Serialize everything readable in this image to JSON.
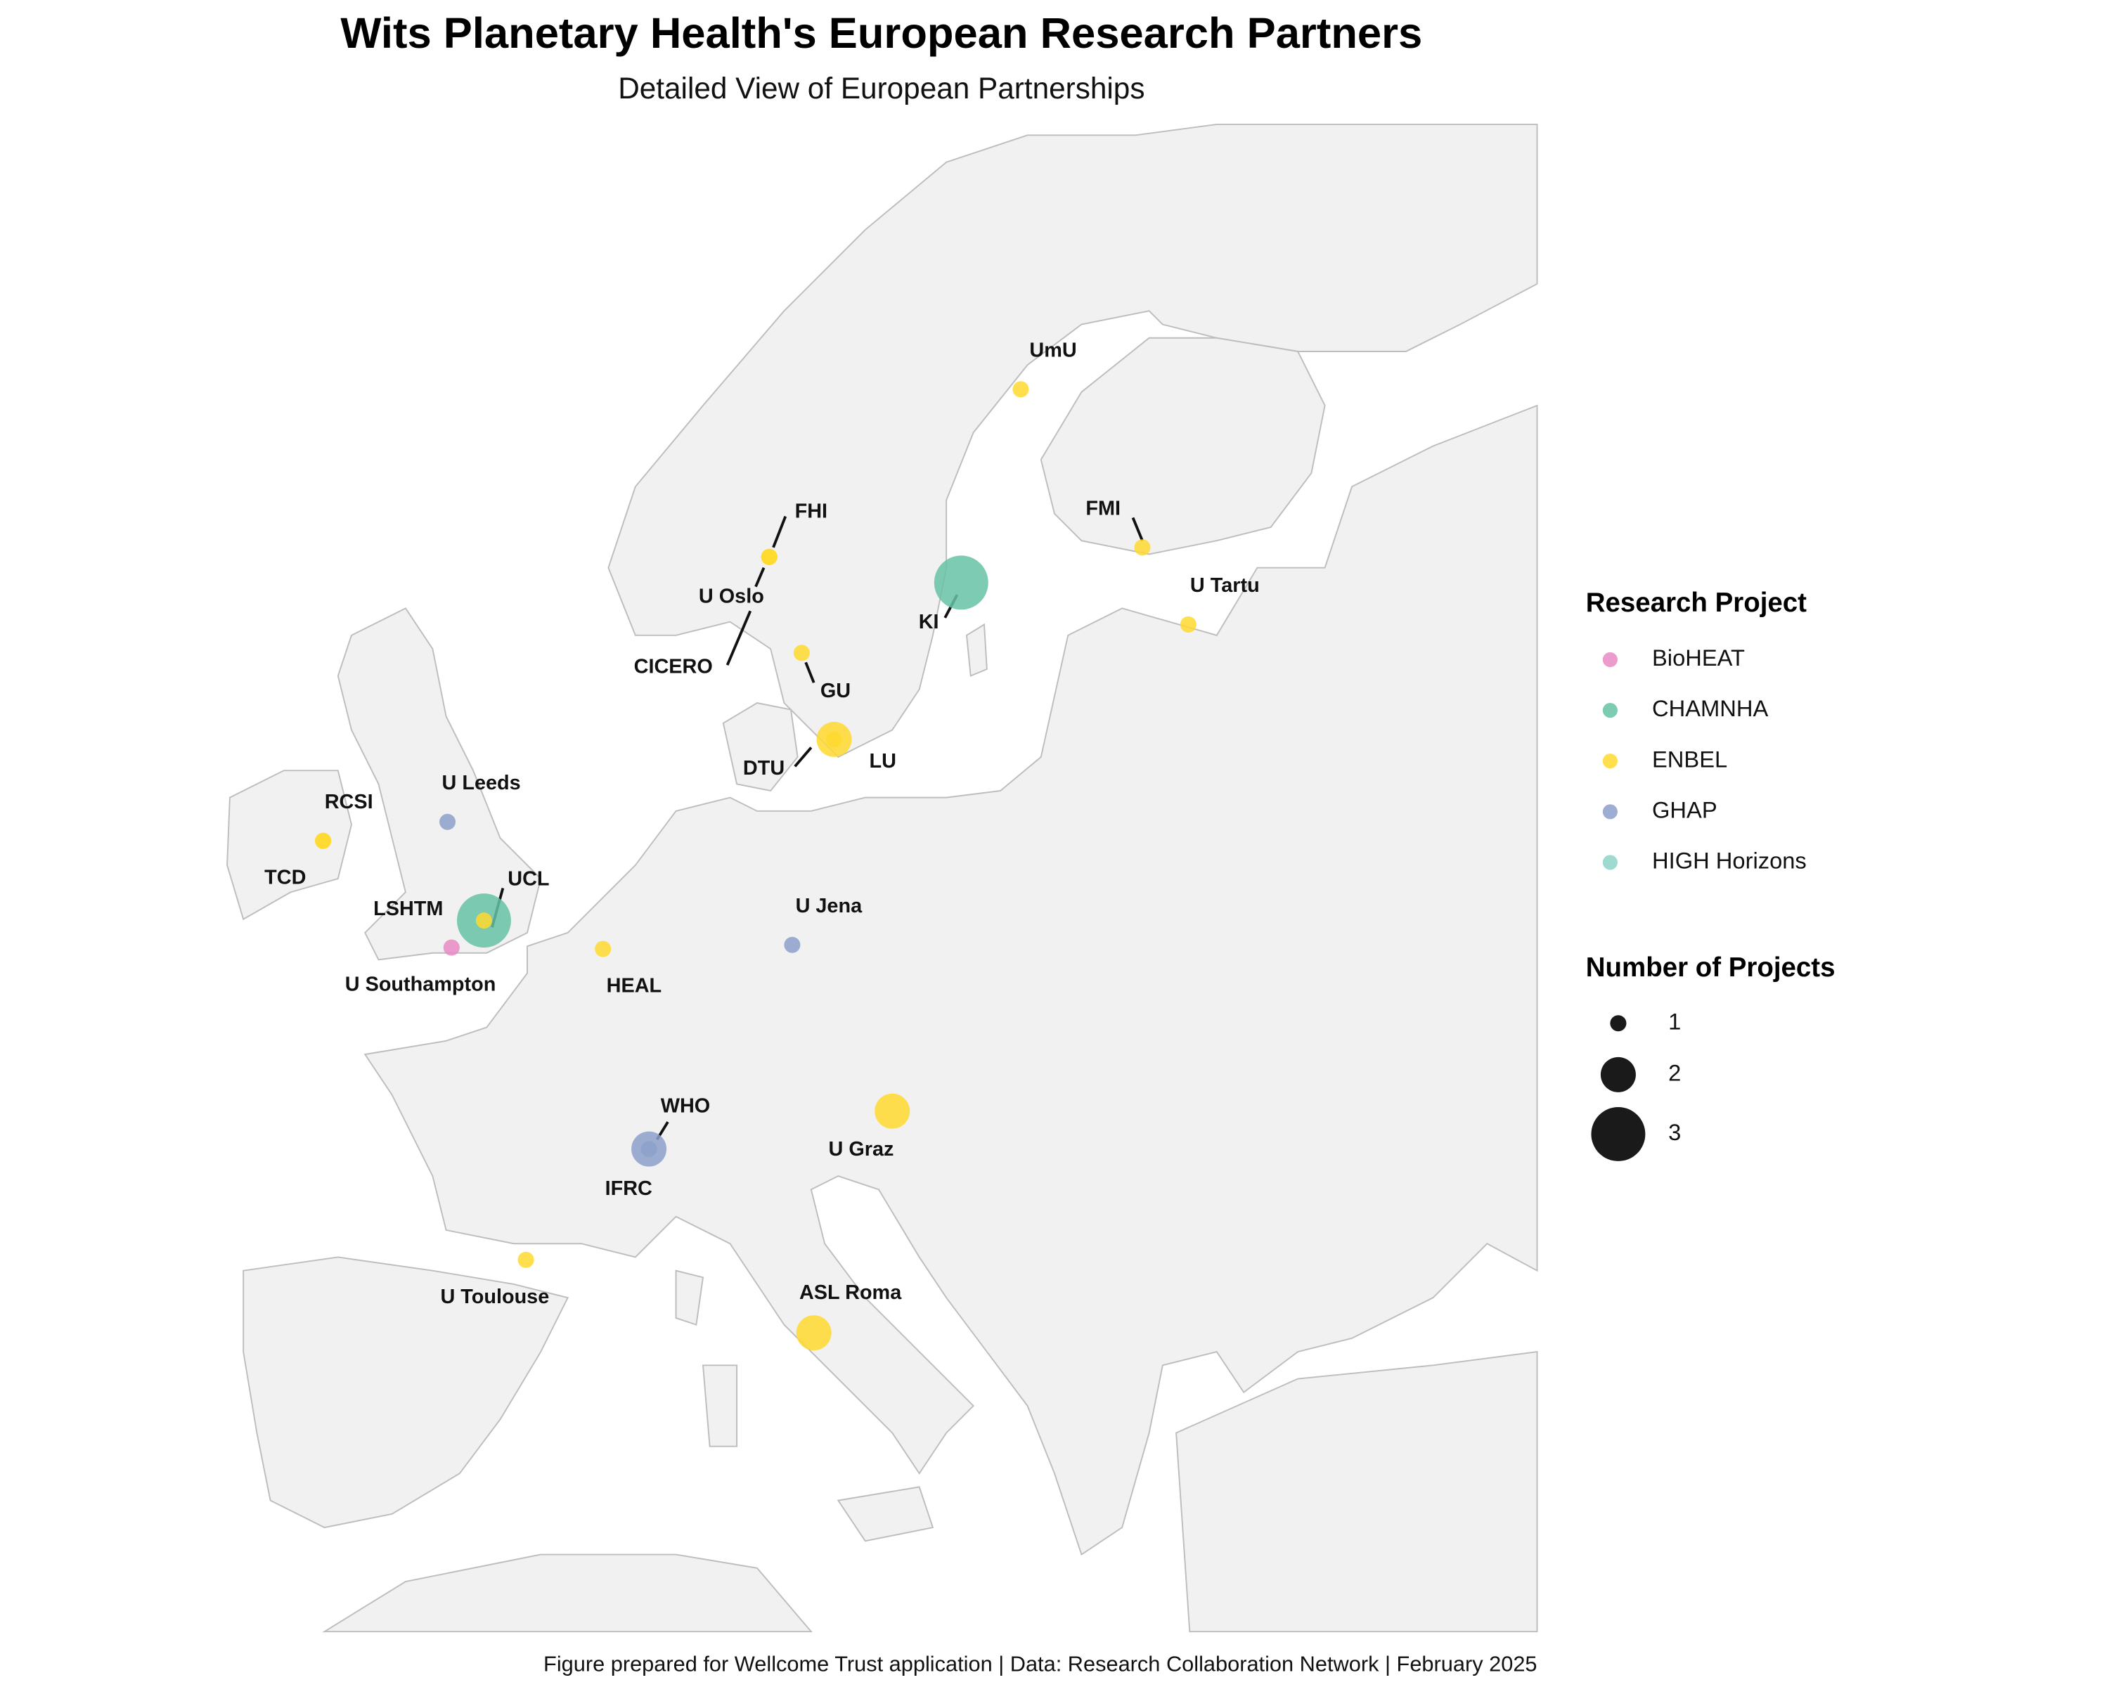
{
  "title": "Wits Planetary Health's European Research Partners",
  "subtitle": "Detailed View of European Partnerships",
  "caption": "Figure prepared for Wellcome Trust application | Data: Research Collaboration Network | February 2025",
  "legend": {
    "color_title": "Research Project",
    "projects": [
      {
        "name": "BioHEAT",
        "color": "#e78ac3"
      },
      {
        "name": "CHAMNHA",
        "color": "#66c2a5"
      },
      {
        "name": "ENBEL",
        "color": "#ffd92f"
      },
      {
        "name": "GHAP",
        "color": "#8da0cb"
      },
      {
        "name": "HIGH Horizons",
        "color": "#8dd3c7"
      }
    ],
    "size_title": "Number of Projects",
    "sizes": [
      1,
      2,
      3
    ]
  },
  "partners": [
    {
      "label": "UmU",
      "project": "ENBEL",
      "projects": 1
    },
    {
      "label": "FHI",
      "project": "ENBEL",
      "projects": 1
    },
    {
      "label": "U Oslo",
      "project": "ENBEL",
      "projects": 1
    },
    {
      "label": "CICERO",
      "project": "ENBEL",
      "projects": 1
    },
    {
      "label": "GU",
      "project": "ENBEL",
      "projects": 1
    },
    {
      "label": "LU",
      "project": "ENBEL",
      "projects": 2
    },
    {
      "label": "DTU",
      "project": "ENBEL",
      "projects": 1
    },
    {
      "label": "KI",
      "project": "CHAMNHA",
      "projects": 3
    },
    {
      "label": "FMI",
      "project": "ENBEL",
      "projects": 1
    },
    {
      "label": "U Tartu",
      "project": "ENBEL",
      "projects": 1
    },
    {
      "label": "U Leeds",
      "project": "GHAP",
      "projects": 1
    },
    {
      "label": "RCSI",
      "project": "ENBEL",
      "projects": 1
    },
    {
      "label": "TCD",
      "project": "ENBEL",
      "projects": 1
    },
    {
      "label": "LSHTM",
      "project": "CHAMNHA",
      "projects": 3
    },
    {
      "label": "UCL",
      "project": "ENBEL",
      "projects": 1
    },
    {
      "label": "U Southampton",
      "project": "BioHEAT",
      "projects": 1
    },
    {
      "label": "HEAL",
      "project": "ENBEL",
      "projects": 1
    },
    {
      "label": "U Jena",
      "project": "GHAP",
      "projects": 1
    },
    {
      "label": "U Graz",
      "project": "ENBEL",
      "projects": 2
    },
    {
      "label": "WHO",
      "project": "GHAP",
      "projects": 2
    },
    {
      "label": "IFRC",
      "project": "GHAP",
      "projects": 1
    },
    {
      "label": "U Toulouse",
      "project": "ENBEL",
      "projects": 1
    },
    {
      "label": "ASL Roma",
      "project": "ENBEL",
      "projects": 2
    }
  ]
}
